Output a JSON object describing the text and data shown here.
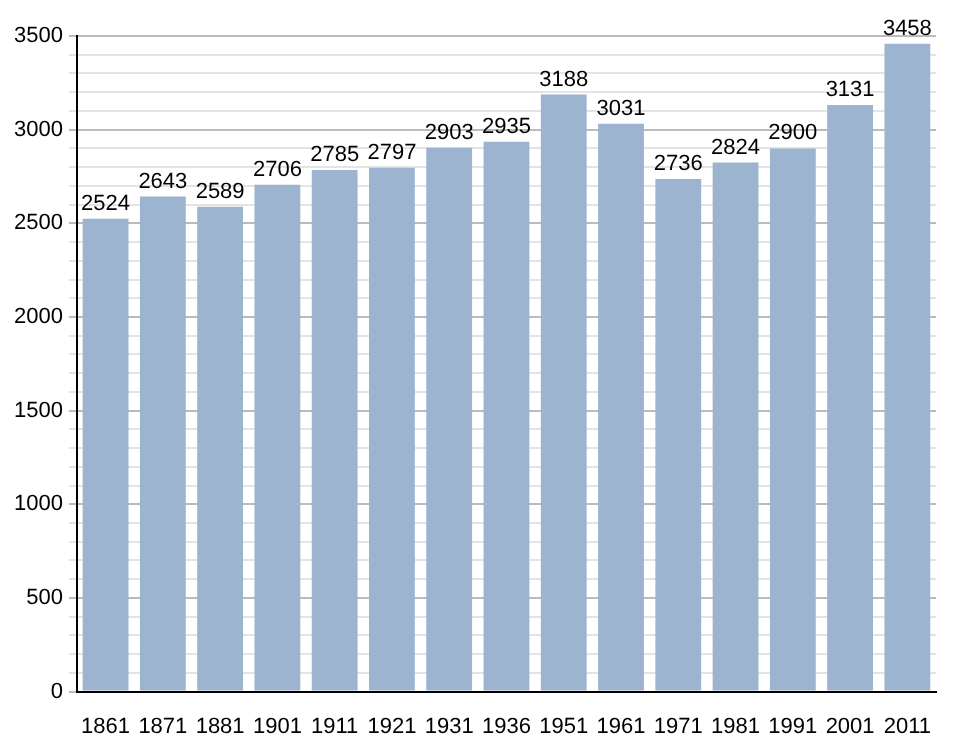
{
  "chart_data": {
    "type": "bar",
    "categories": [
      "1861",
      "1871",
      "1881",
      "1901",
      "1911",
      "1921",
      "1931",
      "1936",
      "1951",
      "1961",
      "1971",
      "1981",
      "1991",
      "2001",
      "2011"
    ],
    "values": [
      2524,
      2643,
      2589,
      2706,
      2785,
      2797,
      2903,
      2935,
      3188,
      3031,
      2736,
      2824,
      2900,
      3131,
      3458
    ],
    "color": "#9cb4cf",
    "ylim": [
      0,
      3500
    ],
    "yticks": [
      0,
      {
        "value": 100,
        "label": null
      },
      {
        "value": 200,
        "label": null
      },
      {
        "value": 300,
        "label": null
      },
      {
        "value": 400,
        "label": null
      },
      500,
      {
        "value": 600,
        "label": null
      },
      {
        "value": 700,
        "label": null
      },
      {
        "value": 800,
        "label": null
      },
      {
        "value": 900,
        "label": null
      },
      1000,
      {
        "value": 1100,
        "label": null
      },
      {
        "value": 1200,
        "label": null
      },
      {
        "value": 1300,
        "label": null
      },
      {
        "value": 1400,
        "label": null
      },
      1500,
      {
        "value": 1600,
        "label": null
      },
      {
        "value": 1700,
        "label": null
      },
      {
        "value": 1800,
        "label": null
      },
      {
        "value": 1900,
        "label": null
      },
      2000,
      {
        "value": 2100,
        "label": null
      },
      {
        "value": 2200,
        "label": null
      },
      {
        "value": 2300,
        "label": null
      },
      {
        "value": 2400,
        "label": null
      },
      2500,
      {
        "value": 2600,
        "label": null
      },
      {
        "value": 2700,
        "label": null
      },
      {
        "value": 2800,
        "label": null
      },
      {
        "value": 2900,
        "label": null
      },
      3000,
      {
        "value": 3100,
        "label": null
      },
      {
        "value": 3200,
        "label": null
      },
      {
        "value": 3300,
        "label": null
      },
      {
        "value": 3400,
        "label": null
      },
      3500
    ],
    "grid": "y",
    "data_labels": true
  }
}
